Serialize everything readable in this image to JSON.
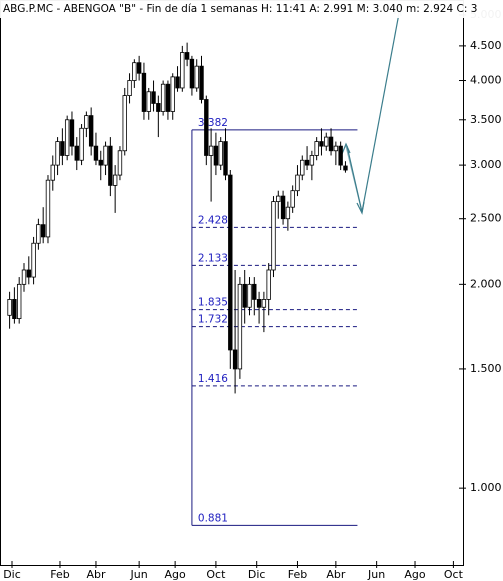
{
  "chart_data": {
    "type": "candlestick",
    "title": "ABG.P.MC - ABENGOA \"B\" - Fin de día 1 semanas  H: 11:41  A: 2.991  M: 3.040  m: 2.924  C: 3",
    "x": [
      0,
      1,
      2,
      3,
      4,
      5,
      6,
      7,
      8,
      9,
      10,
      11,
      12,
      13,
      14,
      15,
      16,
      17,
      18,
      19,
      20,
      21,
      22,
      23,
      24,
      25,
      26,
      27,
      28,
      29,
      30,
      31,
      32,
      33,
      34,
      35,
      36,
      37,
      38,
      39,
      40,
      41,
      42,
      43,
      44,
      45,
      46,
      47,
      48,
      49,
      50,
      51,
      52,
      53,
      54,
      55,
      56,
      57,
      58,
      59,
      60,
      61,
      62,
      63,
      64,
      65,
      66,
      67,
      68,
      69,
      70
    ],
    "open": [
      1.8,
      1.9,
      1.78,
      2.0,
      2.1,
      2.05,
      2.3,
      2.45,
      2.35,
      2.85,
      3.0,
      3.25,
      3.1,
      3.5,
      3.2,
      3.05,
      3.4,
      3.55,
      3.2,
      3.05,
      3.0,
      3.2,
      2.8,
      2.9,
      3.15,
      3.8,
      4.0,
      4.25,
      4.1,
      3.6,
      3.85,
      3.7,
      3.6,
      3.95,
      3.6,
      4.05,
      3.9,
      4.4,
      4.3,
      3.9,
      4.2,
      3.75,
      3.1,
      3.2,
      3.0,
      3.25,
      2.9,
      1.6,
      1.5,
      2.0,
      1.85,
      2.0,
      1.9,
      1.85,
      1.9,
      2.1,
      2.65,
      2.7,
      2.5,
      2.6,
      2.75,
      2.9,
      3.05,
      3.0,
      3.1,
      3.25,
      3.2,
      3.3,
      3.15,
      3.2,
      2.991
    ],
    "high": [
      1.95,
      1.98,
      2.05,
      2.15,
      2.2,
      2.35,
      2.5,
      2.6,
      2.9,
      3.1,
      3.3,
      3.4,
      3.55,
      3.6,
      3.3,
      3.45,
      3.6,
      3.65,
      3.35,
      3.15,
      3.25,
      3.3,
      3.0,
      3.2,
      3.9,
      4.1,
      4.3,
      4.35,
      4.25,
      3.9,
      4.0,
      3.8,
      4.0,
      4.0,
      4.1,
      4.2,
      4.5,
      4.55,
      4.35,
      4.3,
      4.35,
      3.8,
      3.4,
      3.35,
      3.3,
      3.4,
      2.95,
      2.1,
      2.05,
      2.1,
      2.05,
      2.05,
      1.95,
      1.95,
      2.15,
      2.7,
      2.75,
      2.75,
      2.65,
      2.8,
      3.0,
      3.1,
      3.2,
      3.15,
      3.3,
      3.4,
      3.35,
      3.4,
      3.25,
      3.25,
      3.04
    ],
    "low": [
      1.72,
      1.75,
      1.75,
      1.95,
      2.0,
      2.0,
      2.25,
      2.3,
      2.3,
      2.75,
      2.9,
      3.0,
      3.05,
      3.1,
      2.95,
      3.0,
      3.3,
      3.1,
      3.0,
      2.85,
      2.9,
      2.7,
      2.55,
      2.85,
      3.1,
      3.7,
      3.9,
      4.0,
      3.5,
      3.5,
      3.6,
      3.3,
      3.55,
      3.5,
      3.5,
      3.85,
      3.85,
      4.2,
      3.8,
      3.85,
      3.7,
      3.0,
      2.65,
      2.9,
      2.95,
      2.85,
      1.5,
      1.38,
      1.45,
      1.75,
      1.8,
      1.8,
      1.75,
      1.7,
      1.8,
      2.05,
      2.5,
      2.45,
      2.4,
      2.55,
      2.7,
      2.85,
      2.95,
      2.85,
      3.05,
      3.1,
      3.15,
      3.1,
      3.0,
      2.95,
      2.924
    ],
    "close": [
      1.9,
      1.78,
      2.0,
      2.1,
      2.05,
      2.3,
      2.45,
      2.35,
      2.85,
      3.0,
      3.25,
      3.1,
      3.5,
      3.2,
      3.05,
      3.4,
      3.55,
      3.2,
      3.05,
      3.0,
      3.2,
      2.8,
      2.9,
      3.15,
      3.8,
      4.0,
      4.25,
      4.1,
      3.6,
      3.85,
      3.7,
      3.6,
      3.95,
      3.6,
      4.05,
      3.9,
      4.4,
      4.3,
      3.9,
      4.2,
      3.75,
      3.1,
      3.2,
      3.0,
      3.25,
      2.9,
      1.6,
      1.5,
      2.0,
      1.85,
      2.0,
      1.9,
      1.85,
      1.9,
      2.1,
      2.65,
      2.7,
      2.5,
      2.6,
      2.75,
      2.9,
      3.05,
      3.0,
      3.1,
      3.25,
      3.2,
      3.3,
      3.15,
      3.2,
      3.0,
      2.95
    ],
    "xlim": [
      -2,
      94.5
    ],
    "xticks": [
      {
        "value": 0.5,
        "label": "Dic"
      },
      {
        "value": 10.5,
        "label": "Feb"
      },
      {
        "value": 18,
        "label": "Abr"
      },
      {
        "value": 27,
        "label": "Jun"
      },
      {
        "value": 34.5,
        "label": "Ago"
      },
      {
        "value": 43,
        "label": "Oct"
      },
      {
        "value": 51.5,
        "label": "Dic"
      },
      {
        "value": 60,
        "label": "Feb"
      },
      {
        "value": 68,
        "label": "Abr"
      },
      {
        "value": 76.5,
        "label": "Jun"
      },
      {
        "value": 84.5,
        "label": "Ago"
      },
      {
        "value": 92.5,
        "label": "Oct"
      }
    ],
    "ylim": [
      0.77,
      5.26
    ],
    "log_scale": true,
    "yticks": [
      {
        "value": 1,
        "label": "1.000"
      },
      {
        "value": 1.5,
        "label": "1.500"
      },
      {
        "value": 2,
        "label": "2.000"
      },
      {
        "value": 2.5,
        "label": "2.500"
      },
      {
        "value": 3,
        "label": "3.000"
      },
      {
        "value": 3.5,
        "label": "3.500"
      },
      {
        "value": 4,
        "label": "4.000"
      },
      {
        "value": 4.5,
        "label": "4.500"
      },
      {
        "value": 5,
        "label": "5.000"
      }
    ],
    "fib_levels": [
      3.382,
      2.428,
      2.133,
      1.835,
      1.732,
      1.416,
      0.881
    ],
    "fib_xlim": [
      38,
      72.5
    ],
    "level_color": "#1a1a80"
  }
}
